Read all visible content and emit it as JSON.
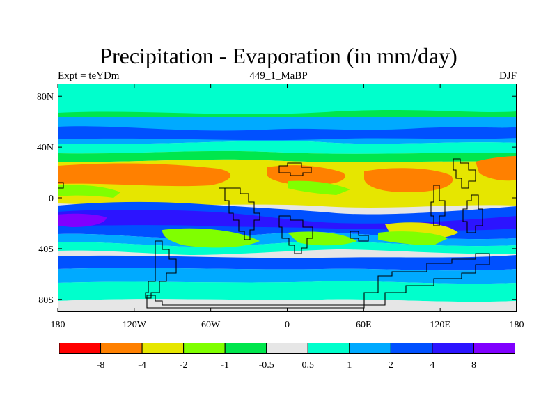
{
  "title": "Precipitation - Evaporation (in mm/day)",
  "subtitle_left": "Expt = teYDm",
  "subtitle_center": "449_1_MaBP",
  "subtitle_right": "DJF",
  "axes": {
    "lon_ticks": [
      "180",
      "120W",
      "60W",
      "0",
      "60E",
      "120E",
      "180"
    ],
    "lat_ticks": [
      "80N",
      "40N",
      "0",
      "40S",
      "80S"
    ]
  },
  "colorbar": {
    "colors": [
      "#ff0000",
      "#ff8000",
      "#e6e600",
      "#80ff00",
      "#00e64d",
      "#e6e6e6",
      "#00ffcc",
      "#00aaff",
      "#0050ff",
      "#2c14ff",
      "#8000ff"
    ],
    "labels": [
      "-8",
      "-4",
      "-2",
      "-1",
      "-0.5",
      "0.5",
      "1",
      "2",
      "4",
      "8"
    ]
  }
}
